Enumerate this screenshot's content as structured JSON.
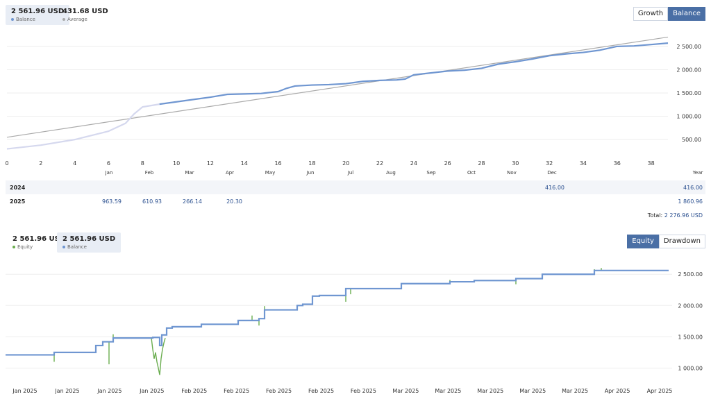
{
  "top_legend": [
    {
      "value": "2 561.96 USD",
      "label": "Balance",
      "color": "#6f96d1",
      "active": true
    },
    {
      "value": "431.68 USD",
      "label": "Average",
      "color": "#aaaaaa",
      "active": false
    }
  ],
  "top_buttons": [
    {
      "label": "Growth",
      "selected": false
    },
    {
      "label": "Balance",
      "selected": true
    }
  ],
  "bottom_legend": [
    {
      "value": "2 561.96 USD",
      "label": "Equity",
      "color": "#6aad4f",
      "active": false
    },
    {
      "value": "2 561.96 USD",
      "label": "Balance",
      "color": "#6f96d1",
      "active": true
    }
  ],
  "bottom_buttons": [
    {
      "label": "Equity",
      "selected": true
    },
    {
      "label": "Drawdown",
      "selected": false
    }
  ],
  "month_labels": [
    "Jan",
    "Feb",
    "Mar",
    "Apr",
    "May",
    "Jun",
    "Jul",
    "Aug",
    "Sep",
    "Oct",
    "Nov",
    "Dec",
    "Year"
  ],
  "table": {
    "rows": [
      {
        "year": "2024",
        "cells": [
          {
            "col": 11,
            "value": "416.00"
          },
          {
            "col": 12,
            "value": "416.00"
          }
        ]
      },
      {
        "year": "2025",
        "cells": [
          {
            "col": 0,
            "value": "963.59"
          },
          {
            "col": 1,
            "value": "610.93"
          },
          {
            "col": 2,
            "value": "266.14"
          },
          {
            "col": 3,
            "value": "20.30"
          },
          {
            "col": 12,
            "value": "1 860.96"
          }
        ]
      }
    ],
    "total_label": "Total:",
    "total_value": "2 276.96 USD"
  },
  "chart_data": [
    {
      "type": "line",
      "x_ticks": [
        0,
        2,
        4,
        6,
        8,
        10,
        12,
        14,
        16,
        18,
        20,
        22,
        24,
        26,
        28,
        30,
        32,
        34,
        36,
        38
      ],
      "y_ticks": [
        500,
        1000,
        1500,
        2000,
        2500
      ],
      "y_tick_labels": [
        "500.00",
        "1 000.00",
        "1 500.00",
        "2 000.00",
        "2 500.00"
      ],
      "xlim": [
        0,
        39
      ],
      "ylim": [
        100,
        2900
      ],
      "series": [
        {
          "name": "Balance",
          "color": "#6f96d1",
          "x": [
            0,
            2,
            4,
            6,
            7,
            7.5,
            8,
            9,
            10,
            11,
            12,
            13,
            14,
            15,
            16,
            16.5,
            17,
            18,
            19,
            20,
            21,
            22,
            23,
            23.5,
            24,
            25,
            26,
            27,
            28,
            29,
            30,
            31,
            32,
            33,
            34,
            35,
            36,
            37,
            38,
            39
          ],
          "y": [
            300,
            380,
            500,
            680,
            850,
            1050,
            1200,
            1260,
            1310,
            1360,
            1410,
            1470,
            1480,
            1490,
            1530,
            1600,
            1650,
            1670,
            1680,
            1700,
            1750,
            1770,
            1780,
            1800,
            1890,
            1930,
            1970,
            1990,
            2030,
            2120,
            2170,
            2230,
            2300,
            2340,
            2370,
            2420,
            2500,
            2510,
            2540,
            2570
          ]
        },
        {
          "name": "Average",
          "color": "#aaaaaa",
          "x": [
            0,
            39
          ],
          "y": [
            550,
            2700
          ]
        }
      ]
    },
    {
      "type": "line",
      "x_tick_labels": [
        "Jan 2025",
        "Jan 2025",
        "Jan 2025",
        "Jan 2025",
        "Feb 2025",
        "Feb 2025",
        "Feb 2025",
        "Feb 2025",
        "Feb 2025",
        "Mar 2025",
        "Mar 2025",
        "Mar 2025",
        "Mar 2025",
        "Mar 2025",
        "Apr 2025",
        "Apr 2025"
      ],
      "y_ticks": [
        1000,
        1500,
        2000,
        2500
      ],
      "y_tick_labels": [
        "1 000.00",
        "1 500.00",
        "2 000.00",
        "2 500.00"
      ],
      "xlim": [
        0,
        960
      ],
      "ylim": [
        760,
        2780
      ],
      "series": [
        {
          "name": "Balance",
          "color": "#6f96d1",
          "x": [
            0,
            70,
            70,
            130,
            130,
            140,
            140,
            155,
            155,
            212,
            212,
            222,
            222,
            225,
            225,
            232,
            232,
            240,
            240,
            282,
            282,
            335,
            335,
            365,
            365,
            373,
            373,
            420,
            420,
            428,
            428,
            442,
            442,
            452,
            452,
            490,
            490,
            497,
            497,
            570,
            570,
            640,
            640,
            675,
            675,
            735,
            735,
            773,
            773,
            848,
            848,
            858,
            858,
            955
          ],
          "y": [
            1210,
            1210,
            1250,
            1250,
            1360,
            1360,
            1420,
            1420,
            1480,
            1480,
            1490,
            1490,
            1360,
            1360,
            1530,
            1530,
            1640,
            1640,
            1660,
            1660,
            1700,
            1700,
            1760,
            1760,
            1790,
            1790,
            1930,
            1930,
            2000,
            2000,
            2020,
            2020,
            2150,
            2150,
            2160,
            2160,
            2270,
            2270,
            2270,
            2270,
            2350,
            2350,
            2380,
            2380,
            2400,
            2400,
            2430,
            2430,
            2500,
            2500,
            2560,
            2560,
            2560,
            2560
          ]
        },
        {
          "name": "Equity",
          "color": "#6aad4f",
          "segments": [
            {
              "x": [
                70,
                70
              ],
              "y": [
                1250,
                1100
              ]
            },
            {
              "x": [
                130,
                130
              ],
              "y": [
                1360,
                1300
              ]
            },
            {
              "x": [
                149,
                149
              ],
              "y": [
                1420,
                1060
              ]
            },
            {
              "x": [
                155,
                155
              ],
              "y": [
                1480,
                1540
              ]
            },
            {
              "x": [
                210,
                212,
                214,
                216,
                218,
                220,
                222,
                224,
                226,
                228,
                230
              ],
              "y": [
                1480,
                1300,
                1150,
                1250,
                1100,
                1000,
                890,
                1150,
                1300,
                1400,
                1480
              ]
            },
            {
              "x": [
                232,
                232
              ],
              "y": [
                1640,
                1580
              ]
            },
            {
              "x": [
                282,
                282
              ],
              "y": [
                1700,
                1650
              ]
            },
            {
              "x": [
                355,
                355
              ],
              "y": [
                1760,
                1840
              ]
            },
            {
              "x": [
                365,
                365
              ],
              "y": [
                1790,
                1680
              ]
            },
            {
              "x": [
                373,
                373
              ],
              "y": [
                1930,
                1990
              ]
            },
            {
              "x": [
                490,
                490
              ],
              "y": [
                2160,
                2060
              ]
            },
            {
              "x": [
                497,
                497
              ],
              "y": [
                2270,
                2180
              ]
            },
            {
              "x": [
                640,
                640
              ],
              "y": [
                2350,
                2410
              ]
            },
            {
              "x": [
                675,
                675
              ],
              "y": [
                2380,
                2410
              ]
            },
            {
              "x": [
                735,
                735
              ],
              "y": [
                2400,
                2340
              ]
            },
            {
              "x": [
                848,
                848
              ],
              "y": [
                2500,
                2580
              ]
            },
            {
              "x": [
                858,
                858
              ],
              "y": [
                2560,
                2600
              ]
            }
          ]
        }
      ]
    }
  ]
}
